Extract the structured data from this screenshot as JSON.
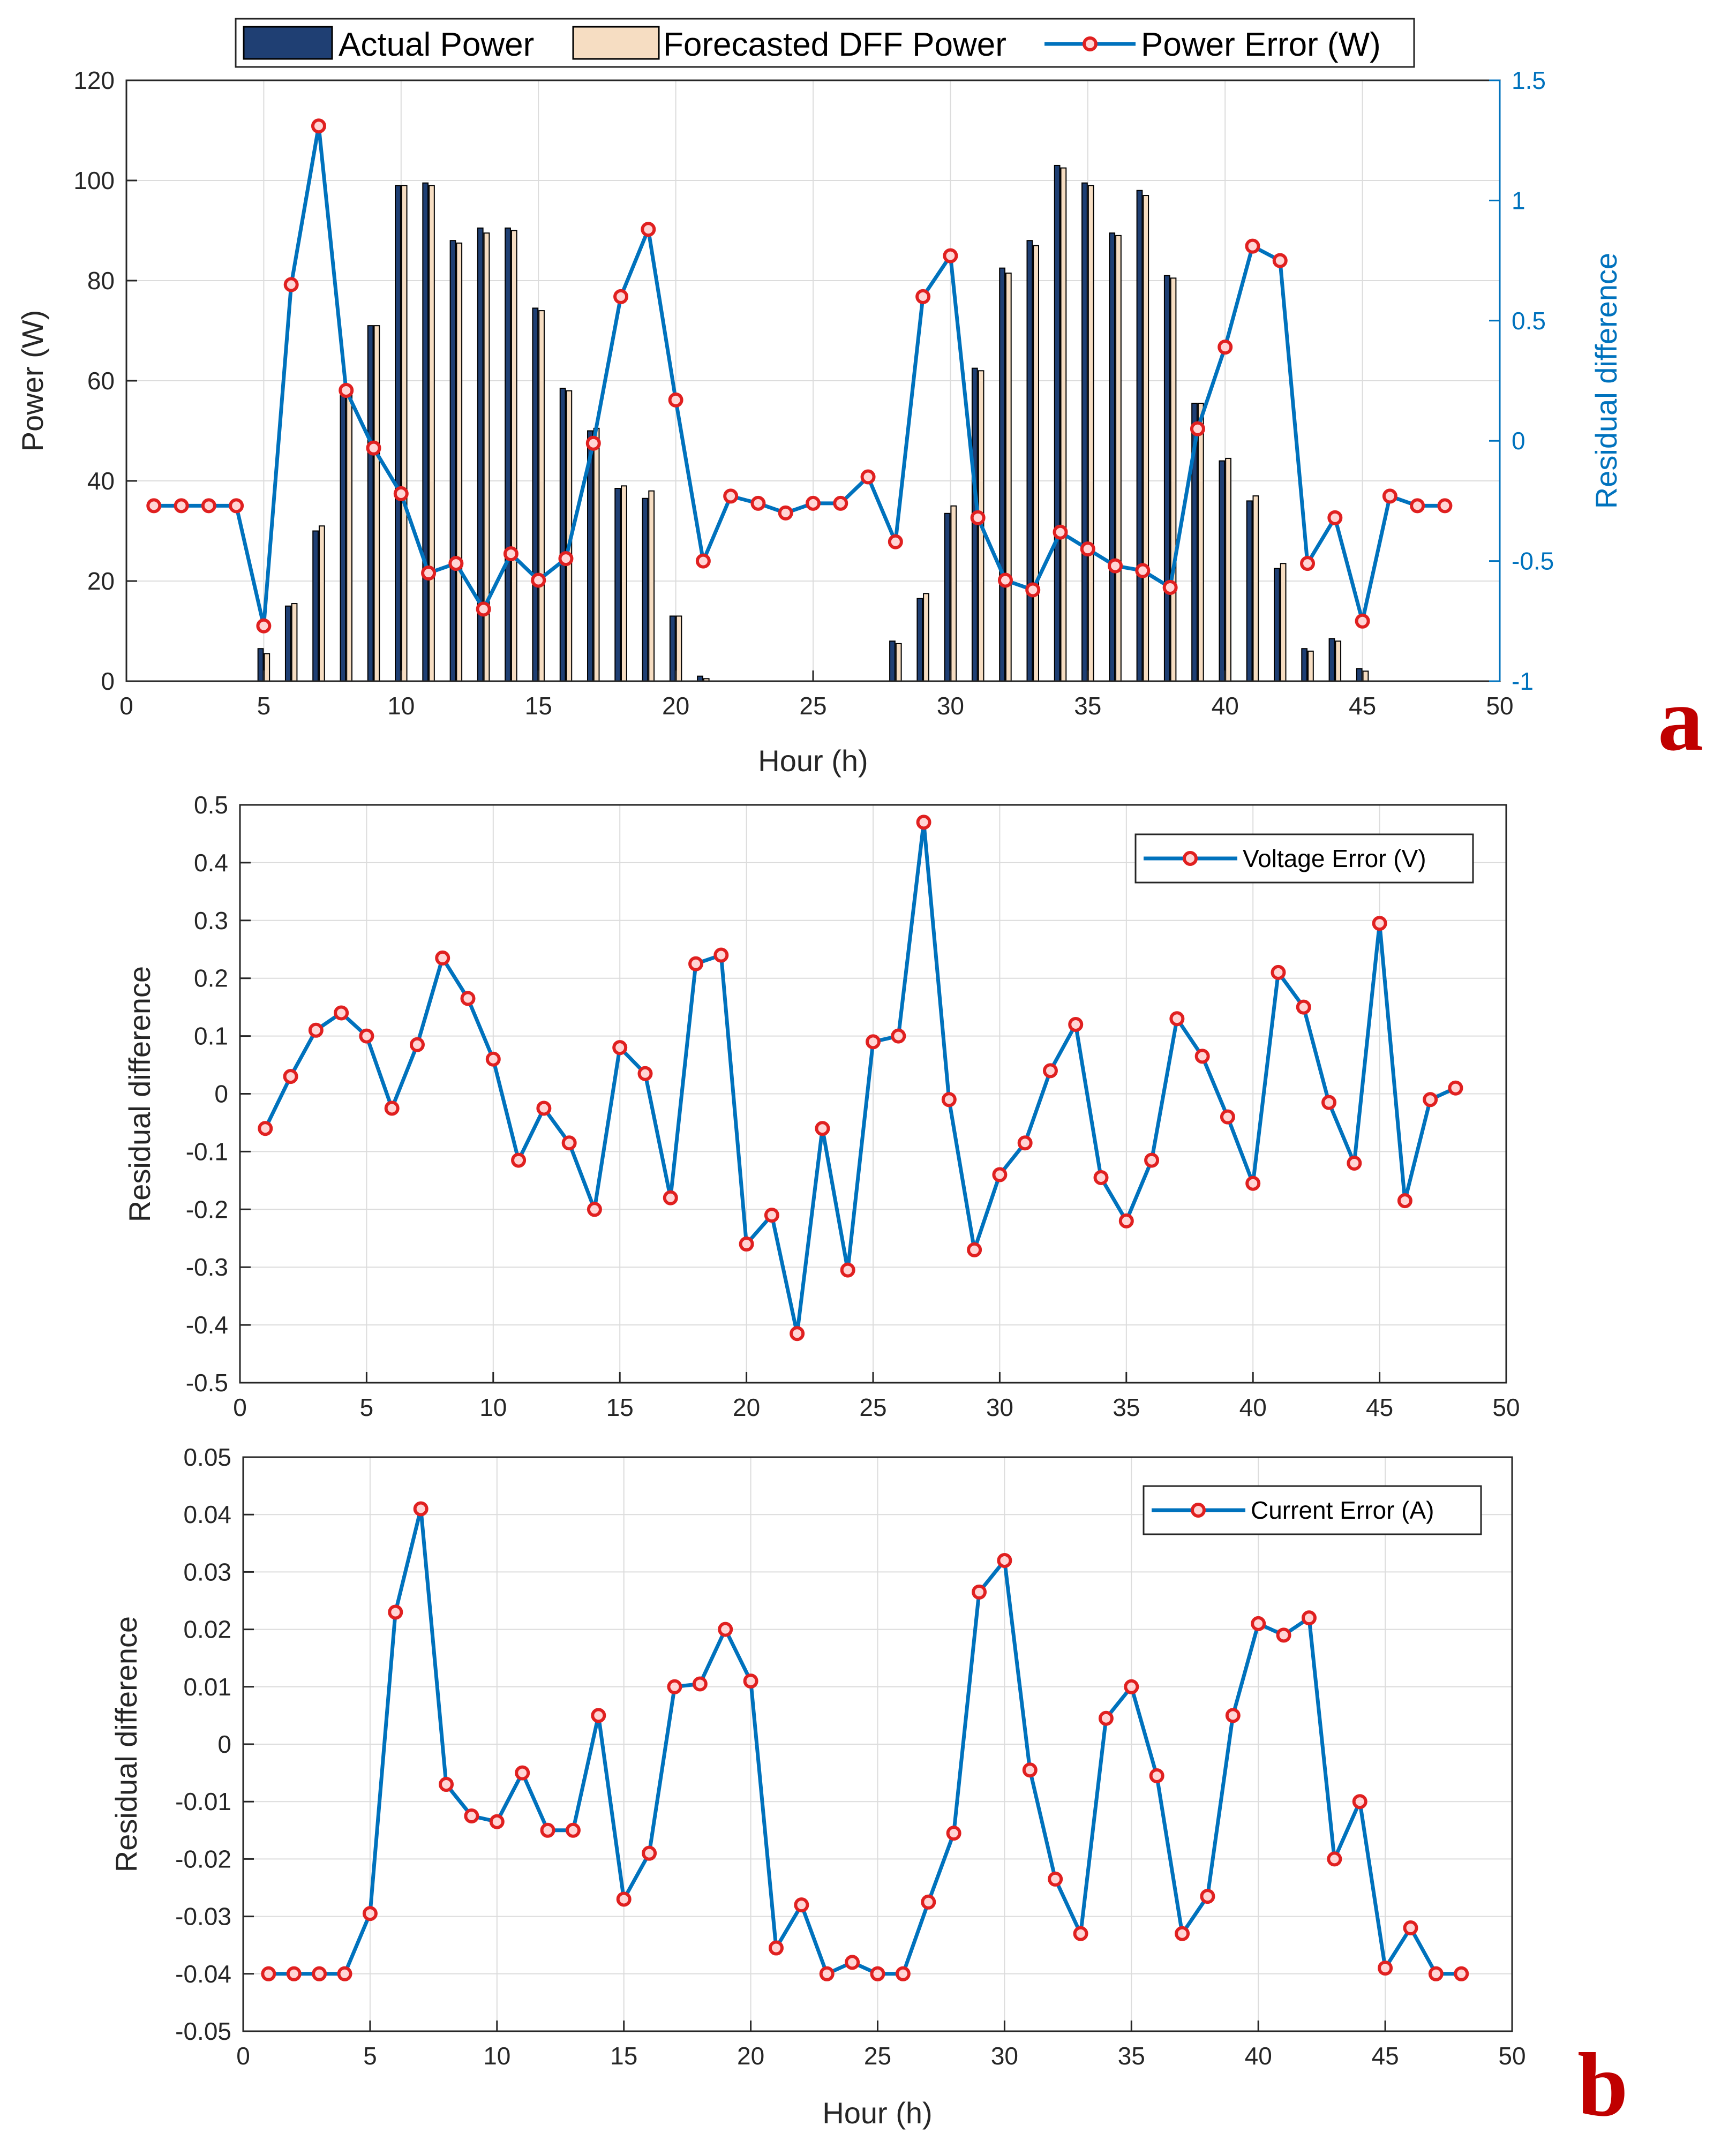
{
  "colors": {
    "actual": "#1f3f73",
    "forecast": "#f6ddc2",
    "line": "#0072bd",
    "marker_edge": "#e02020",
    "marker_fill": "#ffd6d6",
    "panel_label": "#c00000"
  },
  "panel_labels": {
    "a": "a",
    "b": "b"
  },
  "chart_data": [
    {
      "type": "bar+line",
      "title": "",
      "xlabel": "Hour (h)",
      "ylabel": "Power (W)",
      "ylabel_right": "Residual difference",
      "xlim": [
        0,
        50
      ],
      "ylim": [
        0,
        120
      ],
      "ylim_right": [
        -1,
        1.5
      ],
      "xticks": [
        "0",
        "5",
        "10",
        "15",
        "20",
        "25",
        "30",
        "35",
        "40",
        "45",
        "50"
      ],
      "yticks": [
        "0",
        "20",
        "40",
        "60",
        "80",
        "100",
        "120"
      ],
      "yticks_right": [
        "-1",
        "-0.5",
        "0",
        "0.5",
        "1",
        "1.5"
      ],
      "legend": [
        "Actual Power",
        "Forecasted DFF Power",
        "Power Error (W)"
      ],
      "hours": [
        1,
        2,
        3,
        4,
        5,
        6,
        7,
        8,
        9,
        10,
        11,
        12,
        13,
        14,
        15,
        16,
        17,
        18,
        19,
        20,
        21,
        22,
        23,
        24,
        25,
        26,
        27,
        28,
        29,
        30,
        31,
        32,
        33,
        34,
        35,
        36,
        37,
        38,
        39,
        40,
        41,
        42,
        43,
        44,
        45,
        46,
        47,
        48
      ],
      "actual": [
        0,
        0,
        0,
        0,
        6.5,
        15,
        30,
        57,
        71,
        99,
        99.5,
        88,
        90.5,
        90.5,
        74.5,
        58.5,
        50,
        38.5,
        36.5,
        13,
        1,
        0,
        0,
        0,
        0,
        0,
        0,
        8,
        16.5,
        33.5,
        62.5,
        82.5,
        88,
        103,
        99.5,
        89.5,
        98,
        81,
        55.5,
        44,
        36,
        22.5,
        6.5,
        8.5,
        2.5,
        0,
        0,
        0
      ],
      "forecast": [
        0,
        0,
        0,
        0,
        5.5,
        15.5,
        31,
        57.5,
        71,
        99,
        99,
        87.5,
        89.5,
        90,
        74,
        58,
        50.5,
        39,
        38,
        13,
        0.5,
        0,
        0,
        0,
        0,
        0,
        0,
        7.5,
        17.5,
        35,
        62,
        81.5,
        87,
        102.5,
        99,
        89,
        97,
        80.5,
        55.5,
        44.5,
        37,
        23.5,
        6,
        8,
        2,
        0,
        0,
        0
      ],
      "power_error": [
        -0.27,
        -0.27,
        -0.27,
        -0.27,
        -0.77,
        0.65,
        1.31,
        0.21,
        -0.03,
        -0.22,
        -0.55,
        -0.51,
        -0.7,
        -0.47,
        -0.58,
        -0.49,
        -0.01,
        0.6,
        0.88,
        0.17,
        -0.5,
        -0.23,
        -0.26,
        -0.3,
        -0.26,
        -0.26,
        -0.15,
        -0.42,
        0.6,
        0.77,
        -0.32,
        -0.58,
        -0.62,
        -0.38,
        -0.45,
        -0.52,
        -0.54,
        -0.61,
        0.05,
        0.39,
        0.81,
        0.75,
        -0.51,
        -0.32,
        -0.75,
        -0.23,
        -0.27,
        -0.27
      ]
    },
    {
      "type": "line",
      "title": "",
      "xlabel": "",
      "ylabel": "Residual difference",
      "xlim": [
        0,
        50
      ],
      "ylim": [
        -0.5,
        0.5
      ],
      "xticks": [
        "0",
        "5",
        "10",
        "15",
        "20",
        "25",
        "30",
        "35",
        "40",
        "45",
        "50"
      ],
      "yticks": [
        "-0.5",
        "-0.4",
        "-0.3",
        "-0.2",
        "-0.1",
        "0",
        "0.1",
        "0.2",
        "0.3",
        "0.4",
        "0.5"
      ],
      "legend": [
        "Voltage Error (V)"
      ],
      "x": [
        1,
        2,
        3,
        4,
        5,
        6,
        7,
        8,
        9,
        10,
        11,
        12,
        13,
        14,
        15,
        16,
        17,
        18,
        19,
        20,
        21,
        22,
        23,
        24,
        25,
        26,
        27,
        28,
        29,
        30,
        31,
        32,
        33,
        34,
        35,
        36,
        37,
        38,
        39,
        40,
        41,
        42,
        43,
        44,
        45,
        46,
        47,
        48
      ],
      "values": [
        -0.06,
        0.03,
        0.11,
        0.14,
        0.1,
        -0.025,
        0.085,
        0.235,
        0.165,
        0.06,
        -0.115,
        -0.025,
        -0.085,
        -0.2,
        0.08,
        0.035,
        -0.18,
        0.225,
        0.24,
        -0.26,
        -0.21,
        -0.415,
        -0.06,
        -0.305,
        0.09,
        0.1,
        0.47,
        -0.01,
        -0.27,
        -0.14,
        -0.085,
        0.04,
        0.12,
        -0.145,
        -0.22,
        -0.115,
        0.13,
        0.065,
        -0.04,
        -0.155,
        0.21,
        0.15,
        -0.015,
        -0.12,
        0.295,
        -0.185,
        -0.01,
        0.01
      ]
    },
    {
      "type": "line",
      "title": "",
      "xlabel": "Hour (h)",
      "ylabel": "Residual difference",
      "xlim": [
        0,
        50
      ],
      "ylim": [
        -0.05,
        0.05
      ],
      "xticks": [
        "0",
        "5",
        "10",
        "15",
        "20",
        "25",
        "30",
        "35",
        "40",
        "45",
        "50"
      ],
      "yticks": [
        "-0.05",
        "-0.04",
        "-0.03",
        "-0.02",
        "-0.01",
        "0",
        "0.01",
        "0.02",
        "0.03",
        "0.04",
        "0.05"
      ],
      "legend": [
        "Current Error (A)"
      ],
      "x": [
        1,
        2,
        3,
        4,
        5,
        6,
        7,
        8,
        9,
        10,
        11,
        12,
        13,
        14,
        15,
        16,
        17,
        18,
        19,
        20,
        21,
        22,
        23,
        24,
        25,
        26,
        27,
        28,
        29,
        30,
        31,
        32,
        33,
        34,
        35,
        36,
        37,
        38,
        39,
        40,
        41,
        42,
        43,
        44,
        45,
        46,
        47,
        48
      ],
      "values": [
        -0.04,
        -0.04,
        -0.04,
        -0.04,
        -0.0295,
        0.023,
        0.041,
        -0.007,
        -0.0125,
        -0.0135,
        -0.005,
        -0.015,
        -0.015,
        0.005,
        -0.027,
        -0.019,
        0.01,
        0.0105,
        0.02,
        0.011,
        -0.0355,
        -0.028,
        -0.04,
        -0.038,
        -0.04,
        -0.04,
        -0.0275,
        -0.0155,
        0.0265,
        0.032,
        -0.0045,
        -0.0235,
        -0.033,
        0.0045,
        0.01,
        -0.0055,
        -0.033,
        -0.0265,
        0.005,
        0.021,
        0.019,
        0.022,
        -0.02,
        -0.01,
        -0.039,
        -0.032,
        -0.04,
        -0.04
      ]
    }
  ]
}
